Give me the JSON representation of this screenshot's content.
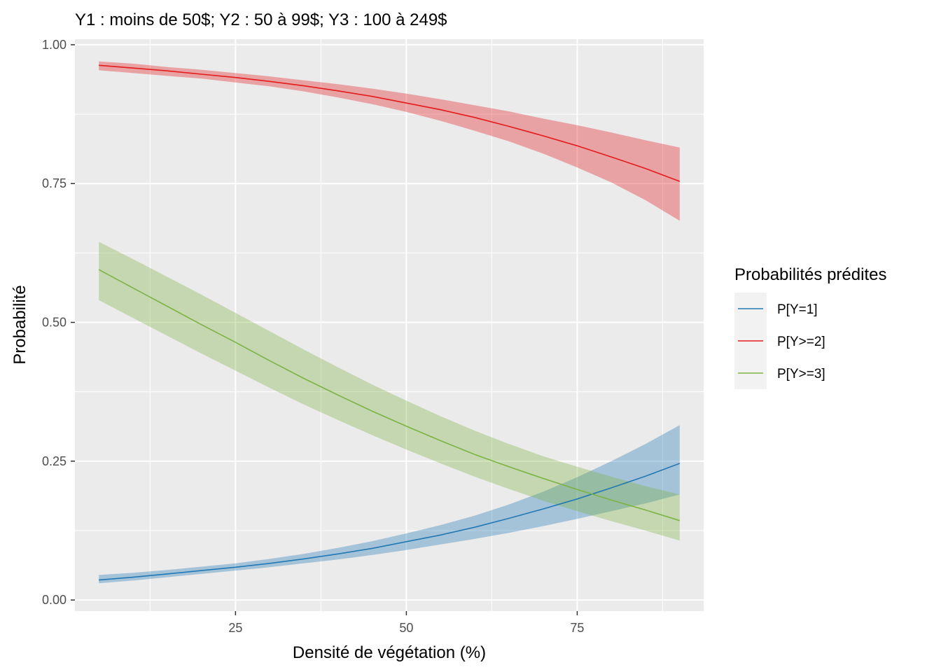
{
  "chart_data": {
    "type": "line",
    "title": "Y1 : moins de 50$; Y2 : 50 à 99$; Y3 : 100 à 249$",
    "xlabel": "Densité de végétation (%)",
    "ylabel": "Probabilité",
    "xlim": [
      1.5,
      93.5
    ],
    "ylim": [
      -0.02,
      1.01
    ],
    "x_ticks": [
      25,
      50,
      75
    ],
    "x_tick_labels": [
      "25",
      "50",
      "75"
    ],
    "x_minor_ticks": [
      12.5,
      37.5,
      62.5,
      87.5
    ],
    "y_ticks": [
      0,
      0.25,
      0.5,
      0.75,
      1.0
    ],
    "y_tick_labels": [
      "0.00",
      "0.25",
      "0.50",
      "0.75",
      "1.00"
    ],
    "y_minor_ticks": [
      0.125,
      0.375,
      0.625,
      0.875
    ],
    "grid": true,
    "legend": {
      "title": "Probabilités prédites",
      "position": "right"
    },
    "x": [
      5,
      10,
      15,
      20,
      25,
      30,
      35,
      40,
      45,
      50,
      55,
      60,
      65,
      70,
      75,
      80,
      85,
      90
    ],
    "series": [
      {
        "name": "P[Y=1]",
        "color": "#2178B4",
        "values": [
          0.036,
          0.041,
          0.047,
          0.053,
          0.059,
          0.066,
          0.074,
          0.083,
          0.093,
          0.105,
          0.117,
          0.131,
          0.147,
          0.164,
          0.182,
          0.202,
          0.223,
          0.246
        ],
        "lower": [
          0.03,
          0.035,
          0.041,
          0.047,
          0.053,
          0.059,
          0.066,
          0.073,
          0.081,
          0.09,
          0.1,
          0.11,
          0.121,
          0.133,
          0.146,
          0.16,
          0.174,
          0.19
        ],
        "upper": [
          0.045,
          0.049,
          0.054,
          0.06,
          0.066,
          0.074,
          0.083,
          0.094,
          0.106,
          0.12,
          0.135,
          0.152,
          0.172,
          0.195,
          0.221,
          0.25,
          0.281,
          0.315
        ]
      },
      {
        "name": "P[Y>=2]",
        "color": "#E41A1C",
        "values": [
          0.963,
          0.958,
          0.953,
          0.947,
          0.941,
          0.934,
          0.926,
          0.917,
          0.907,
          0.895,
          0.883,
          0.869,
          0.853,
          0.836,
          0.818,
          0.798,
          0.777,
          0.754
        ],
        "lower": [
          0.954,
          0.949,
          0.944,
          0.939,
          0.932,
          0.925,
          0.916,
          0.905,
          0.893,
          0.879,
          0.863,
          0.845,
          0.826,
          0.804,
          0.779,
          0.752,
          0.72,
          0.683
        ],
        "upper": [
          0.97,
          0.966,
          0.96,
          0.955,
          0.949,
          0.943,
          0.936,
          0.929,
          0.921,
          0.912,
          0.902,
          0.891,
          0.88,
          0.867,
          0.855,
          0.842,
          0.828,
          0.815
        ]
      },
      {
        "name": "P[Y>=3]",
        "color": "#7CB342",
        "values": [
          0.595,
          0.562,
          0.529,
          0.496,
          0.464,
          0.431,
          0.399,
          0.369,
          0.34,
          0.313,
          0.287,
          0.262,
          0.24,
          0.219,
          0.199,
          0.18,
          0.162,
          0.143
        ],
        "lower": [
          0.54,
          0.508,
          0.476,
          0.444,
          0.413,
          0.382,
          0.352,
          0.324,
          0.297,
          0.271,
          0.246,
          0.222,
          0.2,
          0.179,
          0.16,
          0.142,
          0.125,
          0.107
        ],
        "upper": [
          0.645,
          0.614,
          0.582,
          0.55,
          0.517,
          0.484,
          0.451,
          0.419,
          0.388,
          0.359,
          0.331,
          0.305,
          0.281,
          0.259,
          0.24,
          0.222,
          0.205,
          0.19
        ]
      }
    ]
  }
}
